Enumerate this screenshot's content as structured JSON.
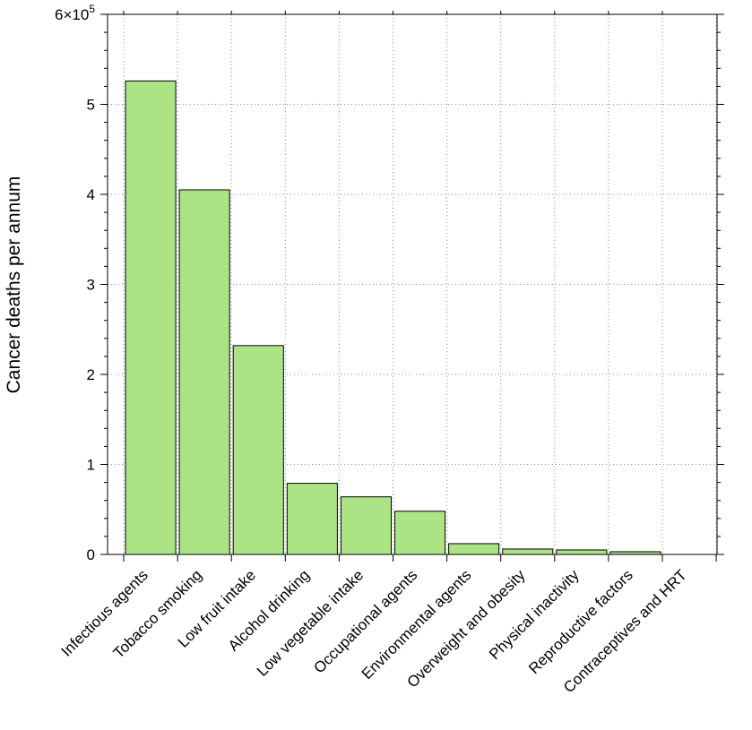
{
  "chart_data": {
    "type": "bar",
    "title": "",
    "xlabel": "",
    "ylabel": "Cancer deaths per annum",
    "ylim": [
      0,
      600000
    ],
    "y_ticks": [
      0,
      100000,
      200000,
      300000,
      400000,
      500000,
      600000
    ],
    "y_tick_labels": [
      "0",
      "1",
      "2",
      "3",
      "4",
      "5",
      "6×10"
    ],
    "y_scale_exponent": "5",
    "grid": true,
    "bar_color": "#ace384",
    "categories": [
      "Infectious agents",
      "Tobacco smoking",
      "Low fruit intake",
      "Alcohol drinking",
      "Low vegetable intake",
      "Occupational agents",
      "Environmental agents",
      "Overweight and obesity",
      "Physical inactivity",
      "Reproductive factors",
      "Contraceptives and HRT"
    ],
    "values": [
      526000,
      405000,
      232000,
      79000,
      64000,
      48000,
      12000,
      6000,
      5000,
      3000,
      0
    ]
  }
}
